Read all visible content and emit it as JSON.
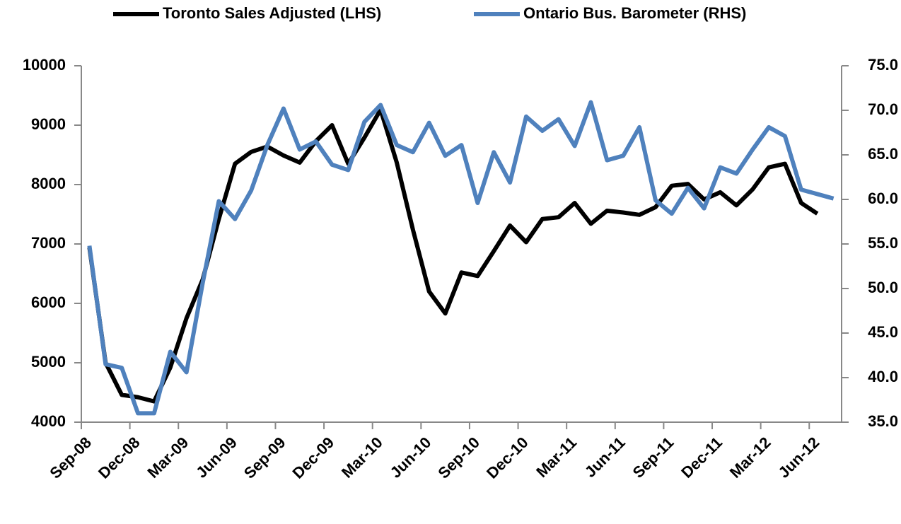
{
  "chart_data": {
    "type": "line",
    "categories": [
      "Sep-08",
      null,
      null,
      "Dec-08",
      null,
      null,
      "Mar-09",
      null,
      null,
      "Jun-09",
      null,
      null,
      "Sep-09",
      null,
      null,
      "Dec-09",
      null,
      null,
      "Mar-10",
      null,
      null,
      "Jun-10",
      null,
      null,
      "Sep-10",
      null,
      null,
      "Dec-10",
      null,
      null,
      "Mar-11",
      null,
      null,
      "Jun-11",
      null,
      null,
      "Sep-11",
      null,
      null,
      "Dec-11",
      null,
      null,
      "Mar-12",
      null,
      null,
      "Jun-12",
      null
    ],
    "series": [
      {
        "name": "Toronto Sales Adjusted (LHS)",
        "color": "#000000",
        "axis": "y",
        "values": [
          6940,
          5000,
          4460,
          4420,
          4350,
          4920,
          5750,
          6400,
          7420,
          8350,
          8550,
          8640,
          8490,
          8370,
          8730,
          9000,
          8350,
          8790,
          9260,
          8370,
          7240,
          6200,
          5830,
          6520,
          6460,
          6880,
          7310,
          7030,
          7420,
          7450,
          7690,
          7340,
          7560,
          7530,
          7490,
          7620,
          7980,
          8010,
          7750,
          7870,
          7650,
          7920,
          8290,
          8350,
          7690,
          7510,
          null
        ]
      },
      {
        "name": "Ontario Bus. Barometer (RHS)",
        "color": "#4f81bd",
        "axis": "y2",
        "values": [
          54.8,
          41.5,
          41.1,
          36.0,
          36.0,
          42.9,
          40.6,
          50.6,
          59.8,
          57.8,
          61.0,
          66.1,
          70.2,
          65.6,
          66.5,
          63.9,
          63.3,
          68.7,
          70.6,
          66.1,
          65.3,
          68.6,
          64.9,
          66.1,
          59.6,
          65.3,
          61.9,
          69.3,
          67.7,
          69.0,
          66.0,
          70.9,
          64.4,
          64.9,
          68.1,
          59.9,
          58.4,
          61.3,
          59.0,
          63.6,
          62.9,
          65.6,
          68.1,
          67.1,
          61.1,
          60.6,
          60.1
        ]
      }
    ],
    "ylim": [
      4000,
      10000
    ],
    "yticks": [
      4000,
      5000,
      6000,
      7000,
      8000,
      9000,
      10000
    ],
    "y2lim": [
      35,
      75
    ],
    "y2ticks": [
      {
        "value": 35,
        "label": "35.0"
      },
      {
        "value": 40,
        "label": "40.0"
      },
      {
        "value": 45,
        "label": "45.0"
      },
      {
        "value": 50,
        "label": "50.0"
      },
      {
        "value": 55,
        "label": "55.0"
      },
      {
        "value": 60,
        "label": "60.0"
      },
      {
        "value": 65,
        "label": "65.0"
      },
      {
        "value": 70,
        "label": "70.0"
      },
      {
        "value": 75,
        "label": "75.0"
      }
    ],
    "legend": "top",
    "grid": false
  }
}
